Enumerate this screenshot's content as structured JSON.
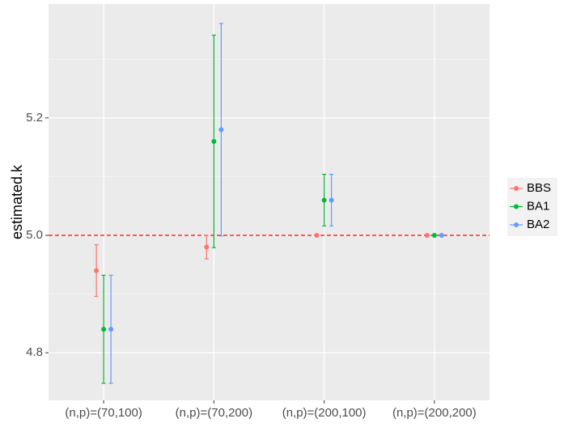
{
  "chart_data": {
    "type": "errorbar",
    "ylabel": "estimated.k",
    "categories": [
      "(n,p)=(70,100)",
      "(n,p)=(70,200)",
      "(n,p)=(200,100)",
      "(n,p)=(200,200)"
    ],
    "series": [
      {
        "name": "BBS",
        "color": "#F8766D",
        "values": [
          4.94,
          4.98,
          5.0,
          5.0
        ],
        "errors": [
          0.044,
          0.02,
          0,
          0
        ]
      },
      {
        "name": "BA1",
        "color": "#00BA38",
        "values": [
          4.84,
          5.16,
          5.06,
          5.0
        ],
        "errors": [
          0.092,
          0.181,
          0.044,
          0
        ]
      },
      {
        "name": "BA2",
        "color": "#619CFF",
        "values": [
          4.84,
          5.18,
          5.06,
          5.0
        ],
        "errors": [
          0.092,
          0.181,
          0.044,
          0
        ]
      }
    ],
    "hline": {
      "value": 5,
      "color": "#FF0000"
    },
    "ylim": [
      4.719,
      5.394
    ],
    "yticks": [
      4.8,
      {
        "value": 5,
        "label": "5.0"
      },
      5.2
    ],
    "grid": true,
    "legend": "right"
  }
}
